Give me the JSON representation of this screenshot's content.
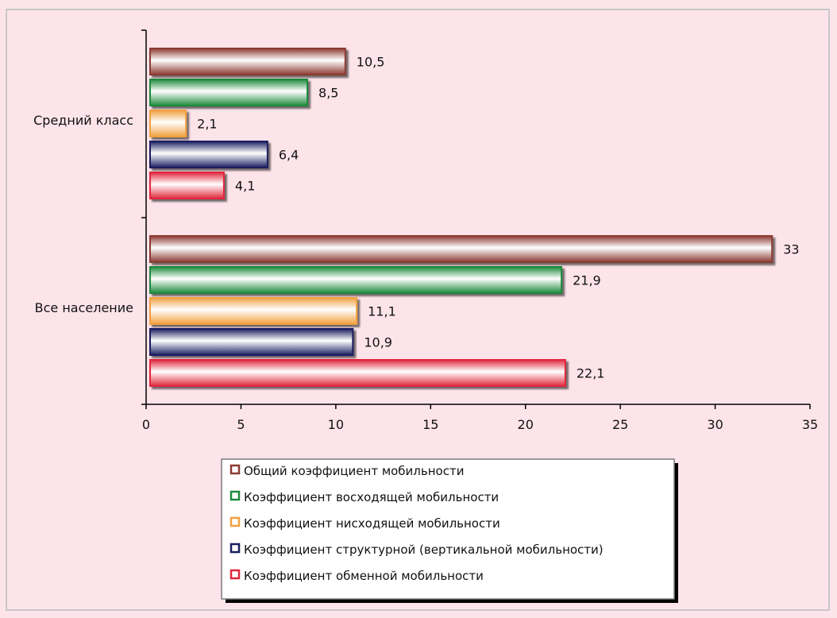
{
  "chart_data": {
    "type": "bar",
    "orientation": "horizontal",
    "categories": [
      "Средний класс",
      "Все население"
    ],
    "series": [
      {
        "name": "Общий коэффициент мобильности",
        "color": "#8b3a32",
        "values": [
          10.5,
          33
        ]
      },
      {
        "name": "Коэффициент восходящей мобильности",
        "color": "#1e8a3c",
        "values": [
          8.5,
          21.9
        ]
      },
      {
        "name": "Коэффициент нисходящей мобильности",
        "color": "#f0a040",
        "values": [
          2.1,
          11.1
        ]
      },
      {
        "name": "Коэффициент структурной (вертикальной мобильности)",
        "color": "#1a1f60",
        "values": [
          6.4,
          10.9
        ]
      },
      {
        "name": "Коэффициент обменной мобильности",
        "color": "#e0283c",
        "values": [
          4.1,
          22.1
        ]
      }
    ],
    "value_labels": [
      [
        "10,5",
        "33"
      ],
      [
        "8,5",
        "21,9"
      ],
      [
        "2,1",
        "11,1"
      ],
      [
        "6,4",
        "10,9"
      ],
      [
        "4,1",
        "22,1"
      ]
    ],
    "xlim": [
      0,
      35
    ],
    "xticks": [
      "0",
      "5",
      "10",
      "15",
      "20",
      "25",
      "30",
      "35"
    ],
    "grid": false,
    "legend_position": "bottom"
  }
}
